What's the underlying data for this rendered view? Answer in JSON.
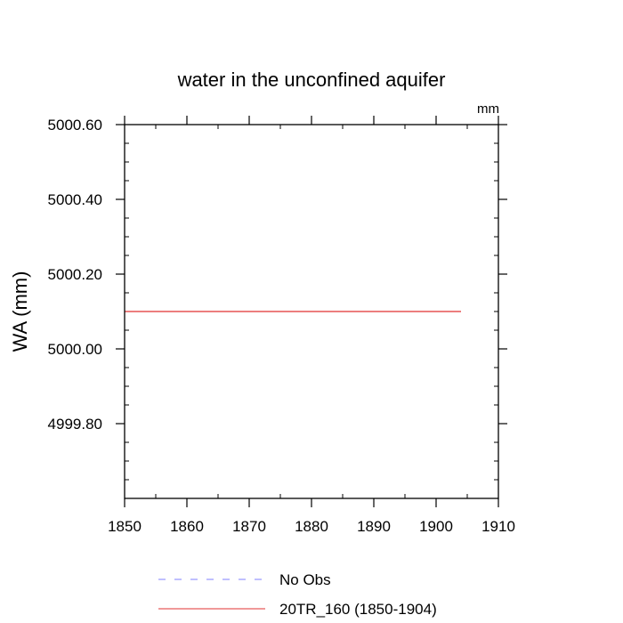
{
  "chart_data": {
    "type": "line",
    "title": "water in the unconfined aquifer",
    "units": "mm",
    "xlabel": "",
    "ylabel": "WA  (mm)",
    "xlim": [
      1850,
      1910
    ],
    "ylim": [
      4999.6,
      5000.6
    ],
    "x_ticks": [
      1850,
      1860,
      1870,
      1880,
      1890,
      1900,
      1910
    ],
    "x_tick_labels": [
      "1850",
      "1860",
      "1870",
      "1880",
      "1890",
      "1900",
      "1910"
    ],
    "x_minor_step": 5,
    "y_ticks": [
      4999.8,
      5000.0,
      5000.2,
      5000.4,
      5000.6
    ],
    "y_tick_labels": [
      "4999.80",
      "5000.00",
      "5000.20",
      "5000.40",
      "5000.60"
    ],
    "y_minor_step": 0.05,
    "grid": false,
    "legend_position": "bottom",
    "series": [
      {
        "name": "No Obs",
        "color": "#8080ff",
        "dash": "dashed",
        "x": [],
        "y": []
      },
      {
        "name": "20TR_160 (1850-1904)",
        "color": "#e03030",
        "dash": "solid",
        "x": [
          1850,
          1904
        ],
        "y": [
          5000.1,
          5000.1
        ]
      }
    ]
  }
}
